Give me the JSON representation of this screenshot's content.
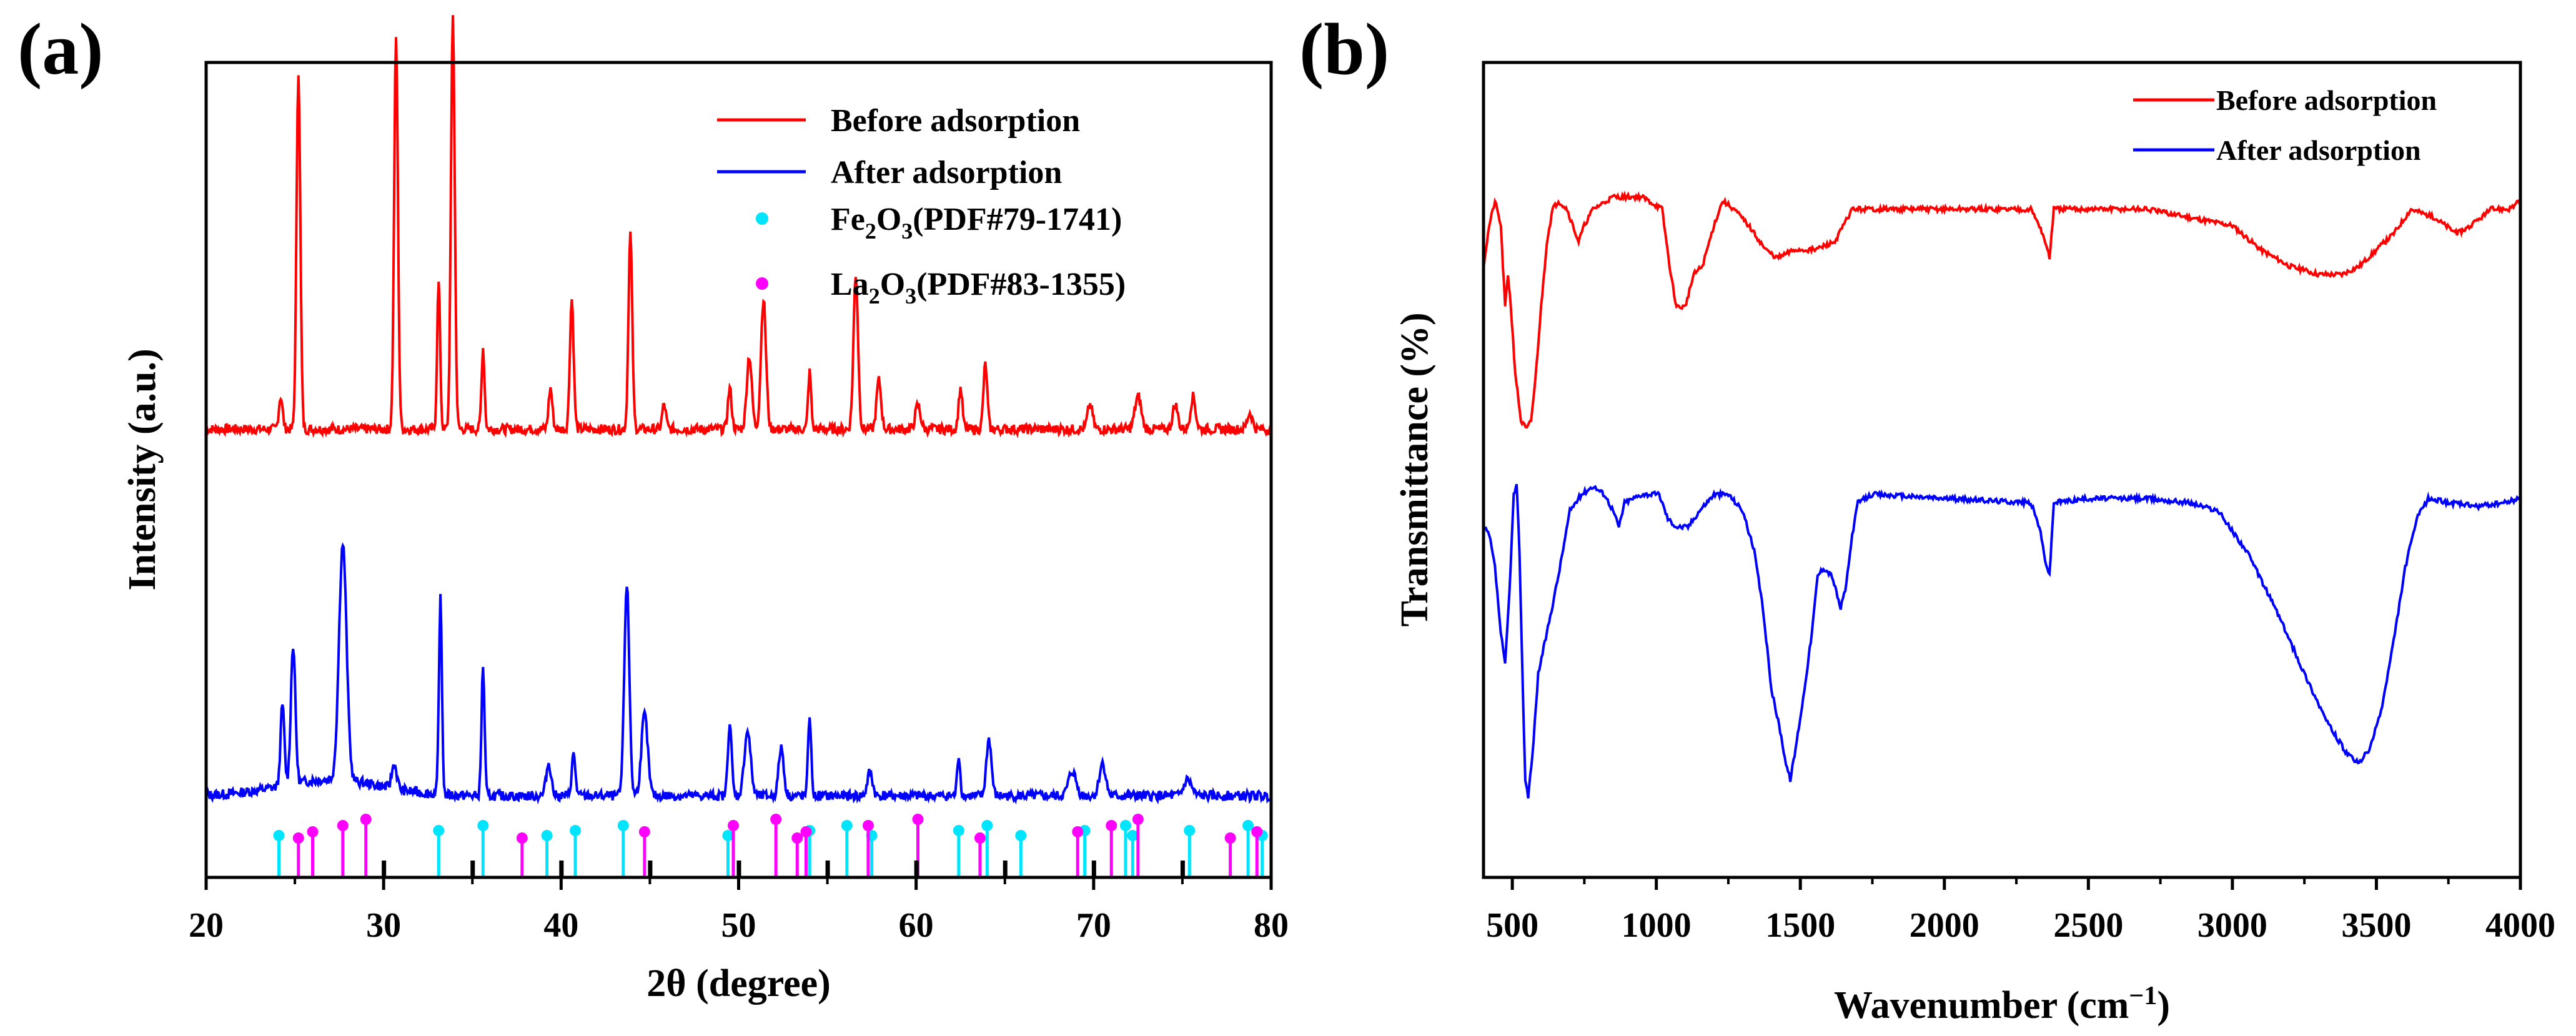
{
  "chart_data": [
    {
      "panel_label": "(a)",
      "type": "line",
      "title": "",
      "xlabel": "2θ (degree)",
      "ylabel": "Intensity (a.u.)",
      "xlim": [
        20,
        80
      ],
      "ylim": [
        0,
        1
      ],
      "xticks": [
        "20",
        "30",
        "40",
        "50",
        "60",
        "70",
        "80"
      ],
      "grid": false,
      "legend_position": "top-right",
      "legend": [
        {
          "label": "Before adsorption",
          "kind": "line",
          "color": "#ff0000"
        },
        {
          "label": "After adsorption",
          "kind": "line",
          "color": "#0000ff"
        },
        {
          "label": "Fe2O3(PDF#79-1741)",
          "kind": "marker",
          "color": "#00e5ff"
        },
        {
          "label": "La2O3(PDF#83-1355)",
          "kind": "marker",
          "color": "#ff00ff"
        }
      ],
      "series": [
        {
          "name": "Before adsorption",
          "color": "#ff0000",
          "baseline": 0.55,
          "peaks": [
            [
              24.2,
              0.04,
              0.15
            ],
            [
              25.2,
              0.44,
              0.15
            ],
            [
              30.7,
              0.48,
              0.15
            ],
            [
              33.1,
              0.18,
              0.12
            ],
            [
              33.9,
              0.51,
              0.15
            ],
            [
              35.6,
              0.1,
              0.12
            ],
            [
              39.4,
              0.05,
              0.15
            ],
            [
              40.6,
              0.16,
              0.15
            ],
            [
              43.9,
              0.24,
              0.15
            ],
            [
              45.8,
              0.03,
              0.15
            ],
            [
              49.5,
              0.05,
              0.15
            ],
            [
              50.6,
              0.09,
              0.2
            ],
            [
              51.4,
              0.16,
              0.2
            ],
            [
              54.0,
              0.07,
              0.12
            ],
            [
              56.6,
              0.19,
              0.18
            ],
            [
              57.9,
              0.06,
              0.18
            ],
            [
              60.1,
              0.03,
              0.2
            ],
            [
              62.5,
              0.05,
              0.15
            ],
            [
              63.9,
              0.08,
              0.15
            ],
            [
              69.8,
              0.03,
              0.2
            ],
            [
              72.5,
              0.04,
              0.25
            ],
            [
              74.6,
              0.03,
              0.2
            ],
            [
              75.6,
              0.04,
              0.2
            ],
            [
              78.8,
              0.02,
              0.2
            ]
          ]
        },
        {
          "name": "After adsorption",
          "color": "#0000ff",
          "baseline": 0.1,
          "peaks": [
            [
              24.3,
              0.1,
              0.15
            ],
            [
              24.9,
              0.17,
              0.18
            ],
            [
              27.7,
              0.29,
              0.3
            ],
            [
              30.6,
              0.03,
              0.2
            ],
            [
              33.2,
              0.24,
              0.12
            ],
            [
              35.6,
              0.16,
              0.12
            ],
            [
              39.3,
              0.04,
              0.2
            ],
            [
              40.7,
              0.05,
              0.15
            ],
            [
              43.7,
              0.26,
              0.2
            ],
            [
              44.7,
              0.1,
              0.25
            ],
            [
              49.5,
              0.09,
              0.15
            ],
            [
              50.5,
              0.08,
              0.25
            ],
            [
              52.4,
              0.06,
              0.2
            ],
            [
              54.0,
              0.1,
              0.12
            ],
            [
              57.4,
              0.03,
              0.2
            ],
            [
              62.4,
              0.05,
              0.12
            ],
            [
              64.1,
              0.07,
              0.2
            ],
            [
              68.8,
              0.03,
              0.3
            ],
            [
              70.5,
              0.04,
              0.25
            ],
            [
              75.3,
              0.02,
              0.3
            ]
          ]
        }
      ],
      "reference_lines": {
        "Fe2O3": {
          "color": "#00e5ff",
          "positions": [
            24.1,
            33.1,
            35.6,
            39.2,
            40.8,
            43.5,
            49.4,
            54.0,
            56.1,
            57.5,
            62.4,
            64.0,
            65.9,
            69.5,
            71.8,
            72.2,
            75.4,
            78.7,
            79.5
          ]
        },
        "La2O3": {
          "color": "#ff00ff",
          "positions": [
            25.2,
            26.0,
            27.7,
            29.0,
            37.8,
            44.7,
            49.7,
            52.1,
            53.3,
            53.8,
            57.3,
            60.1,
            63.6,
            69.1,
            71.0,
            72.5,
            77.7,
            79.2
          ]
        },
        "black_ticks": [
          30.0,
          35.0,
          40.0,
          45.0,
          50.0,
          55.0,
          60.0,
          65.0,
          70.0,
          75.0
        ]
      }
    },
    {
      "panel_label": "(b)",
      "type": "line",
      "title": "",
      "xlabel": "Wavenumber (cm−1)",
      "ylabel": "Transmittance (%)",
      "xlim": [
        400,
        4000
      ],
      "ylim": [
        0,
        1
      ],
      "xticks": [
        "500",
        "1000",
        "1500",
        "2000",
        "2500",
        "3000",
        "3500",
        "4000"
      ],
      "grid": false,
      "legend_position": "top-right",
      "legend": [
        {
          "label": "Before adsorption",
          "kind": "line",
          "color": "#ff0000"
        },
        {
          "label": "After adsorption",
          "kind": "line",
          "color": "#0000ff"
        }
      ],
      "series": [
        {
          "name": "Before adsorption",
          "color": "#ff0000",
          "points": [
            [
              400,
              0.75
            ],
            [
              420,
              0.8
            ],
            [
              440,
              0.83
            ],
            [
              460,
              0.8
            ],
            [
              475,
              0.7
            ],
            [
              485,
              0.74
            ],
            [
              495,
              0.7
            ],
            [
              510,
              0.62
            ],
            [
              530,
              0.56
            ],
            [
              550,
              0.55
            ],
            [
              565,
              0.56
            ],
            [
              580,
              0.61
            ],
            [
              600,
              0.7
            ],
            [
              620,
              0.78
            ],
            [
              640,
              0.82
            ],
            [
              660,
              0.83
            ],
            [
              690,
              0.82
            ],
            [
              710,
              0.8
            ],
            [
              730,
              0.78
            ],
            [
              750,
              0.8
            ],
            [
              780,
              0.82
            ],
            [
              850,
              0.835
            ],
            [
              950,
              0.835
            ],
            [
              1020,
              0.82
            ],
            [
              1050,
              0.74
            ],
            [
              1070,
              0.7
            ],
            [
              1100,
              0.7
            ],
            [
              1130,
              0.74
            ],
            [
              1160,
              0.75
            ],
            [
              1200,
              0.8
            ],
            [
              1230,
              0.83
            ],
            [
              1270,
              0.82
            ],
            [
              1320,
              0.8
            ],
            [
              1380,
              0.77
            ],
            [
              1420,
              0.76
            ],
            [
              1480,
              0.77
            ],
            [
              1550,
              0.77
            ],
            [
              1620,
              0.78
            ],
            [
              1680,
              0.82
            ],
            [
              1750,
              0.82
            ],
            [
              2000,
              0.82
            ],
            [
              2300,
              0.82
            ],
            [
              2330,
              0.8
            ],
            [
              2350,
              0.78
            ],
            [
              2365,
              0.76
            ],
            [
              2380,
              0.82
            ],
            [
              2500,
              0.82
            ],
            [
              2700,
              0.82
            ],
            [
              2850,
              0.81
            ],
            [
              3000,
              0.8
            ],
            [
              3100,
              0.77
            ],
            [
              3200,
              0.75
            ],
            [
              3300,
              0.74
            ],
            [
              3380,
              0.74
            ],
            [
              3440,
              0.75
            ],
            [
              3500,
              0.77
            ],
            [
              3560,
              0.79
            ],
            [
              3620,
              0.82
            ],
            [
              3700,
              0.81
            ],
            [
              3780,
              0.79
            ],
            [
              3830,
              0.8
            ],
            [
              3900,
              0.82
            ],
            [
              3960,
              0.82
            ],
            [
              4000,
              0.83
            ]
          ]
        },
        {
          "name": "After adsorption",
          "color": "#0000ff",
          "points": [
            [
              400,
              0.43
            ],
            [
              420,
              0.42
            ],
            [
              440,
              0.38
            ],
            [
              460,
              0.3
            ],
            [
              475,
              0.26
            ],
            [
              490,
              0.35
            ],
            [
              505,
              0.47
            ],
            [
              515,
              0.48
            ],
            [
              525,
              0.4
            ],
            [
              535,
              0.25
            ],
            [
              545,
              0.12
            ],
            [
              555,
              0.1
            ],
            [
              570,
              0.15
            ],
            [
              590,
              0.25
            ],
            [
              620,
              0.3
            ],
            [
              660,
              0.37
            ],
            [
              700,
              0.45
            ],
            [
              740,
              0.47
            ],
            [
              780,
              0.48
            ],
            [
              820,
              0.47
            ],
            [
              850,
              0.45
            ],
            [
              870,
              0.43
            ],
            [
              890,
              0.46
            ],
            [
              950,
              0.47
            ],
            [
              1010,
              0.47
            ],
            [
              1040,
              0.44
            ],
            [
              1070,
              0.43
            ],
            [
              1110,
              0.43
            ],
            [
              1150,
              0.45
            ],
            [
              1200,
              0.47
            ],
            [
              1250,
              0.47
            ],
            [
              1300,
              0.45
            ],
            [
              1340,
              0.4
            ],
            [
              1370,
              0.33
            ],
            [
              1400,
              0.23
            ],
            [
              1430,
              0.18
            ],
            [
              1450,
              0.14
            ],
            [
              1465,
              0.12
            ],
            [
              1480,
              0.15
            ],
            [
              1510,
              0.22
            ],
            [
              1540,
              0.3
            ],
            [
              1560,
              0.37
            ],
            [
              1580,
              0.38
            ],
            [
              1610,
              0.37
            ],
            [
              1640,
              0.33
            ],
            [
              1660,
              0.36
            ],
            [
              1680,
              0.42
            ],
            [
              1700,
              0.46
            ],
            [
              1750,
              0.47
            ],
            [
              2000,
              0.465
            ],
            [
              2300,
              0.46
            ],
            [
              2330,
              0.43
            ],
            [
              2350,
              0.39
            ],
            [
              2365,
              0.37
            ],
            [
              2380,
              0.46
            ],
            [
              2500,
              0.465
            ],
            [
              2700,
              0.465
            ],
            [
              2850,
              0.46
            ],
            [
              2950,
              0.45
            ],
            [
              3050,
              0.4
            ],
            [
              3150,
              0.33
            ],
            [
              3250,
              0.25
            ],
            [
              3330,
              0.19
            ],
            [
              3400,
              0.15
            ],
            [
              3440,
              0.14
            ],
            [
              3480,
              0.16
            ],
            [
              3520,
              0.21
            ],
            [
              3560,
              0.29
            ],
            [
              3600,
              0.38
            ],
            [
              3640,
              0.44
            ],
            [
              3680,
              0.465
            ],
            [
              3750,
              0.46
            ],
            [
              3850,
              0.455
            ],
            [
              3950,
              0.46
            ],
            [
              4000,
              0.465
            ]
          ]
        }
      ]
    }
  ]
}
